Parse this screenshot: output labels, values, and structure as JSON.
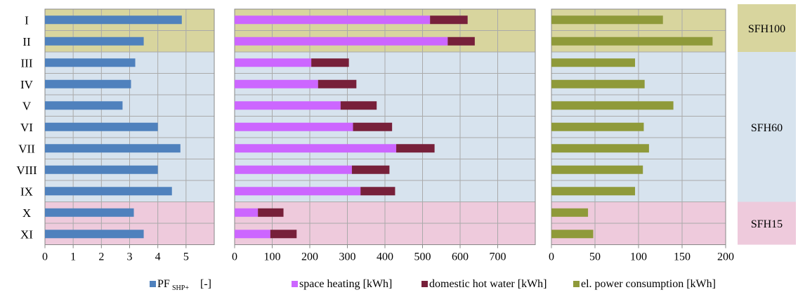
{
  "chart_data": [
    {
      "type": "bar",
      "orientation": "horizontal",
      "categories": [
        "I",
        "II",
        "III",
        "IV",
        "V",
        "VI",
        "VII",
        "VIII",
        "IX",
        "X",
        "XI"
      ],
      "series": [
        {
          "values": [
            4.85,
            3.5,
            3.2,
            3.05,
            2.75,
            4.0,
            4.8,
            4.0,
            4.5,
            3.15,
            3.5
          ],
          "color": "#4f81bd"
        }
      ],
      "xticks": [
        "0",
        "1",
        "2",
        "3",
        "4",
        "5"
      ],
      "xlim": [
        0,
        6
      ],
      "grid": true
    },
    {
      "type": "bar",
      "orientation": "horizontal",
      "stacked": true,
      "categories": [
        "I",
        "II",
        "III",
        "IV",
        "V",
        "VI",
        "VII",
        "VIII",
        "IX",
        "X",
        "XI"
      ],
      "series": [
        {
          "name": "space heating [kWh]",
          "values": [
            520,
            567,
            204,
            222,
            282,
            315,
            430,
            312,
            335,
            62,
            95
          ],
          "color": "#cc66ff"
        },
        {
          "name": "domestic hot water [kWh]",
          "values": [
            100,
            72,
            100,
            102,
            96,
            104,
            102,
            100,
            92,
            68,
            70
          ],
          "color": "#77203a"
        }
      ],
      "xticks": [
        "0",
        "100",
        "200",
        "300",
        "400",
        "500",
        "600",
        "700"
      ],
      "xlim": [
        0,
        800
      ],
      "grid": true
    },
    {
      "type": "bar",
      "orientation": "horizontal",
      "categories": [
        "I",
        "II",
        "III",
        "IV",
        "V",
        "VI",
        "VII",
        "VIII",
        "IX",
        "X",
        "XI"
      ],
      "series": [
        {
          "name": "el. power consumption [kWh]",
          "values": [
            128,
            185,
            96,
            107,
            140,
            106,
            112,
            105,
            96,
            42,
            48
          ],
          "color": "#8f9a3a"
        }
      ],
      "xticks": [
        "0",
        "50",
        "100",
        "150",
        "200"
      ],
      "xlim": [
        0,
        200
      ],
      "grid": true
    }
  ],
  "groups": [
    {
      "label": "SFH100",
      "rows": [
        0,
        1
      ],
      "color": "#d8d59e"
    },
    {
      "label": "SFH60",
      "rows": [
        2,
        8
      ],
      "color": "#d7e3ee"
    },
    {
      "label": "SFH15",
      "rows": [
        9,
        10
      ],
      "color": "#eecadc"
    }
  ],
  "legend": {
    "pf_main": "PF",
    "pf_sub": "SHP+",
    "pf_unit": "[-]",
    "space_heating": "space heating [kWh]",
    "domestic_hot_water": "domestic hot water [kWh]",
    "el_power": "el. power consumption [kWh]"
  },
  "colors": {
    "grid": "#aaaaaa",
    "frame": "#888888"
  }
}
